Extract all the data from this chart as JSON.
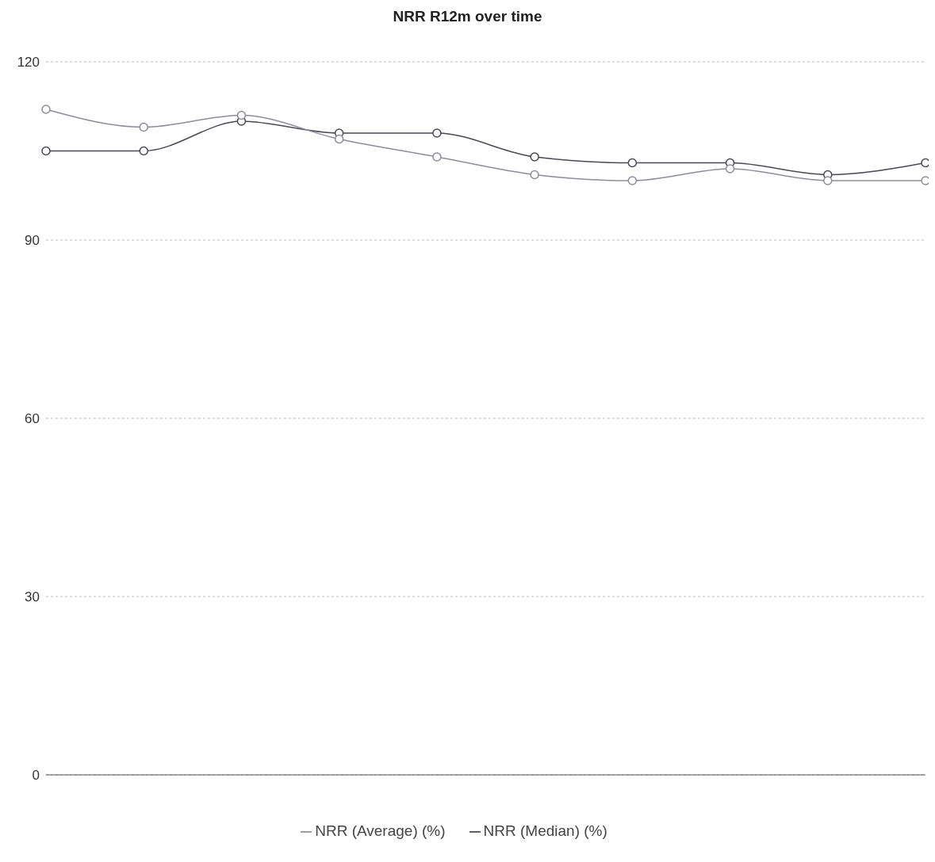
{
  "chart_data": {
    "type": "line",
    "title": "NRR R12m over time",
    "categories": [
      null,
      null,
      null,
      null,
      null,
      null,
      null,
      null,
      null,
      null
    ],
    "series": [
      {
        "name": "NRR (Median) (%)",
        "color": "#4a4758",
        "values": [
          105,
          105,
          110,
          108,
          108,
          104,
          103,
          103,
          101,
          103
        ]
      },
      {
        "name": "NRR (Average) (%)",
        "color": "#8e8aa3",
        "values": [
          112,
          109,
          111,
          107,
          104,
          101,
          100,
          102,
          100,
          100
        ]
      }
    ],
    "ylim": [
      0,
      120
    ],
    "yticks": [
      0,
      30,
      60,
      90,
      120
    ],
    "grid": "y",
    "legend": "bottom",
    "marker": "circle",
    "line_style": "solid"
  }
}
